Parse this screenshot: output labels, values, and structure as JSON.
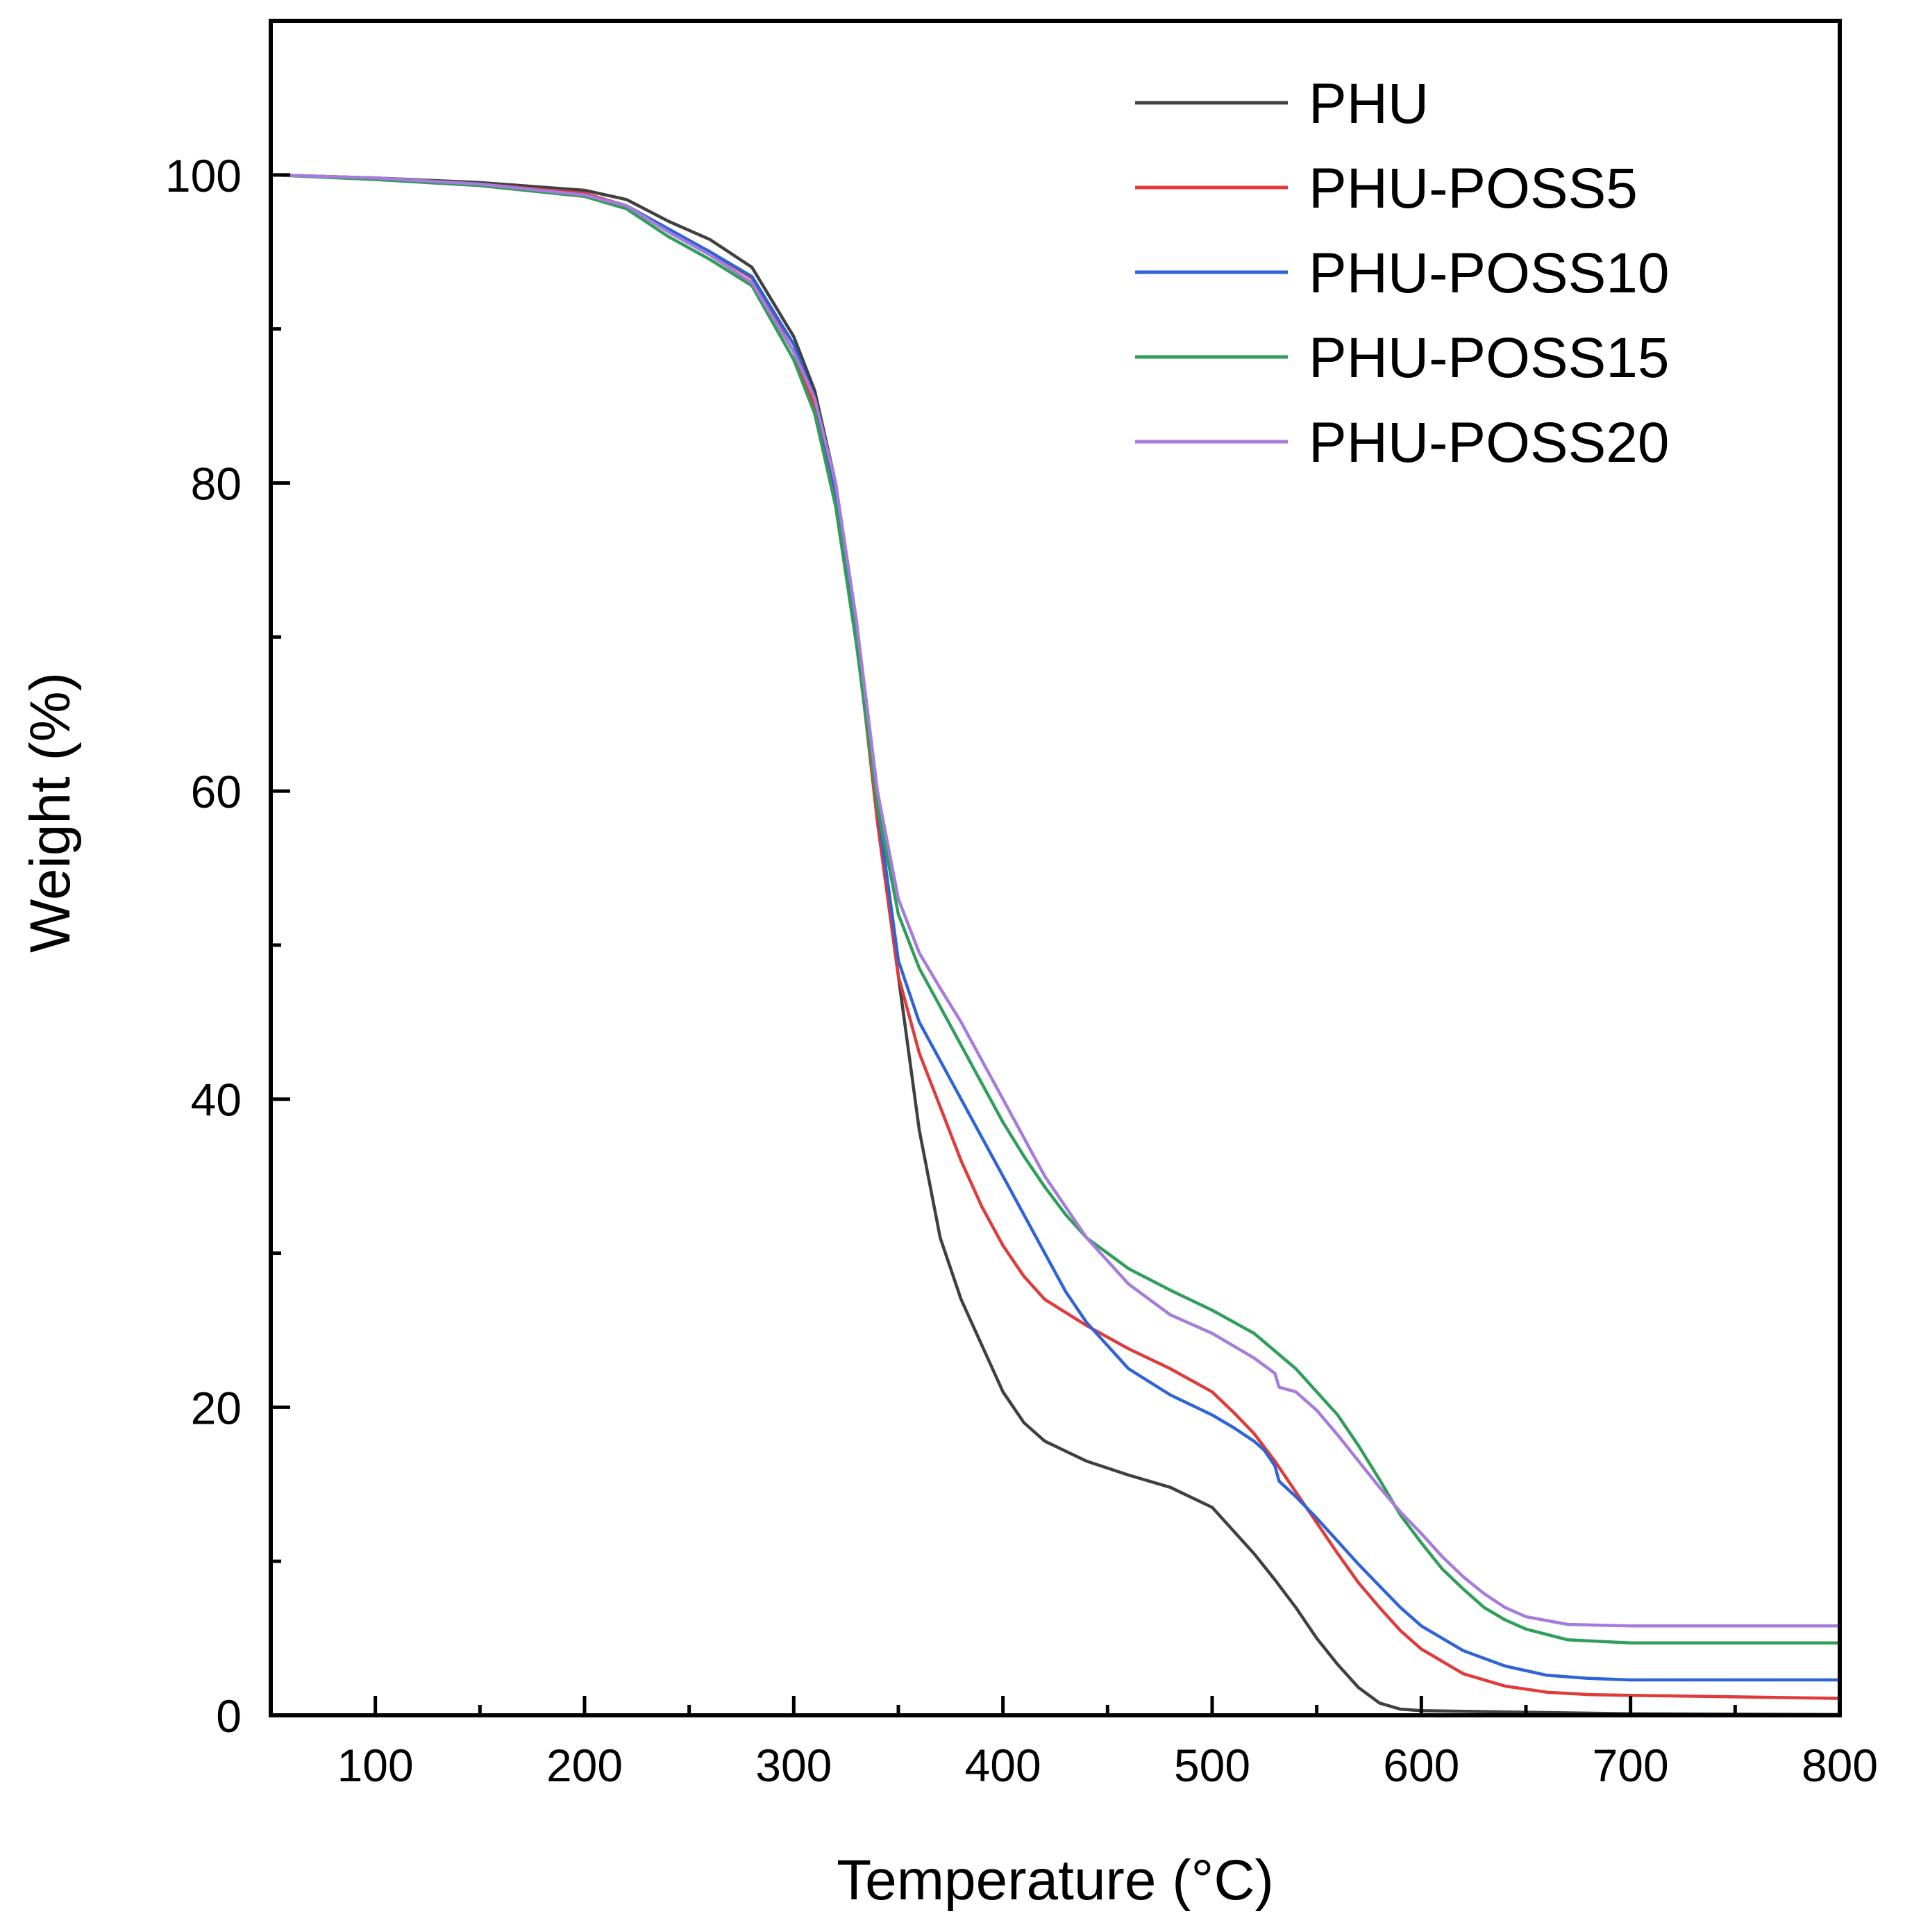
{
  "chart_data": {
    "type": "line",
    "title": "",
    "xlabel": "Temperature (°C)",
    "ylabel": "Weight (%)",
    "xlim": [
      50,
      800
    ],
    "ylim": [
      0,
      110
    ],
    "xticks": [
      "100",
      "200",
      "300",
      "400",
      "500",
      "600",
      "700",
      "800"
    ],
    "yticks": [
      "0",
      "20",
      "40",
      "60",
      "80",
      "100"
    ],
    "legend_position": "top-right",
    "grid": false,
    "series": [
      {
        "name": "PHU",
        "color": "#404040",
        "points": [
          [
            50,
            100
          ],
          [
            100,
            99.8
          ],
          [
            150,
            99.5
          ],
          [
            200,
            99
          ],
          [
            220,
            98.4
          ],
          [
            240,
            97
          ],
          [
            260,
            95.8
          ],
          [
            280,
            94
          ],
          [
            300,
            89.5
          ],
          [
            310,
            86
          ],
          [
            320,
            80
          ],
          [
            330,
            71
          ],
          [
            340,
            58
          ],
          [
            350,
            48
          ],
          [
            360,
            38
          ],
          [
            370,
            31
          ],
          [
            380,
            27
          ],
          [
            390,
            24
          ],
          [
            400,
            21
          ],
          [
            410,
            19
          ],
          [
            420,
            17.8
          ],
          [
            440,
            16.5
          ],
          [
            460,
            15.6
          ],
          [
            480,
            14.8
          ],
          [
            500,
            13.5
          ],
          [
            510,
            12
          ],
          [
            520,
            10.5
          ],
          [
            530,
            8.8
          ],
          [
            540,
            7
          ],
          [
            550,
            5
          ],
          [
            560,
            3.3
          ],
          [
            570,
            1.8
          ],
          [
            580,
            0.8
          ],
          [
            590,
            0.4
          ],
          [
            600,
            0.3
          ],
          [
            650,
            0.2
          ],
          [
            700,
            0.1
          ],
          [
            800,
            0.05
          ]
        ]
      },
      {
        "name": "PHU-POSS5",
        "color": "#e03a3a",
        "points": [
          [
            50,
            100
          ],
          [
            100,
            99.8
          ],
          [
            150,
            99.4
          ],
          [
            200,
            98.8
          ],
          [
            220,
            98
          ],
          [
            240,
            96.5
          ],
          [
            260,
            95
          ],
          [
            280,
            93.3
          ],
          [
            300,
            88.5
          ],
          [
            310,
            85
          ],
          [
            320,
            79
          ],
          [
            330,
            70
          ],
          [
            340,
            58
          ],
          [
            350,
            48
          ],
          [
            360,
            43
          ],
          [
            370,
            39.5
          ],
          [
            380,
            36
          ],
          [
            390,
            33
          ],
          [
            400,
            30.5
          ],
          [
            410,
            28.5
          ],
          [
            420,
            27
          ],
          [
            440,
            25.3
          ],
          [
            460,
            23.8
          ],
          [
            480,
            22.5
          ],
          [
            500,
            21
          ],
          [
            510,
            19.7
          ],
          [
            520,
            18.3
          ],
          [
            530,
            16.5
          ],
          [
            540,
            14.5
          ],
          [
            550,
            12.5
          ],
          [
            560,
            10.5
          ],
          [
            570,
            8.6
          ],
          [
            580,
            7
          ],
          [
            590,
            5.5
          ],
          [
            600,
            4.3
          ],
          [
            620,
            2.7
          ],
          [
            640,
            1.9
          ],
          [
            660,
            1.5
          ],
          [
            680,
            1.35
          ],
          [
            700,
            1.3
          ],
          [
            750,
            1.2
          ],
          [
            800,
            1.1
          ]
        ]
      },
      {
        "name": "PHU-POSS10",
        "color": "#2f63d8",
        "points": [
          [
            50,
            100
          ],
          [
            100,
            99.8
          ],
          [
            150,
            99.4
          ],
          [
            200,
            98.7
          ],
          [
            220,
            98
          ],
          [
            240,
            96.5
          ],
          [
            260,
            95
          ],
          [
            280,
            93.4
          ],
          [
            300,
            89
          ],
          [
            310,
            85.5
          ],
          [
            320,
            79.5
          ],
          [
            330,
            70.5
          ],
          [
            340,
            59
          ],
          [
            350,
            49
          ],
          [
            360,
            45
          ],
          [
            370,
            42.5
          ],
          [
            380,
            40
          ],
          [
            390,
            37.5
          ],
          [
            400,
            35
          ],
          [
            410,
            32.5
          ],
          [
            420,
            30
          ],
          [
            430,
            27.5
          ],
          [
            440,
            25.5
          ],
          [
            460,
            22.5
          ],
          [
            480,
            20.8
          ],
          [
            500,
            19.5
          ],
          [
            510,
            18.7
          ],
          [
            520,
            17.8
          ],
          [
            525,
            17.2
          ],
          [
            530,
            16.2
          ],
          [
            532,
            15.2
          ],
          [
            540,
            14.2
          ],
          [
            550,
            12.8
          ],
          [
            560,
            11.3
          ],
          [
            570,
            9.8
          ],
          [
            580,
            8.4
          ],
          [
            590,
            7
          ],
          [
            600,
            5.8
          ],
          [
            620,
            4.2
          ],
          [
            640,
            3.2
          ],
          [
            660,
            2.6
          ],
          [
            680,
            2.4
          ],
          [
            700,
            2.3
          ],
          [
            750,
            2.3
          ],
          [
            800,
            2.3
          ]
        ]
      },
      {
        "name": "PHU-POSS15",
        "color": "#2f9e5a",
        "points": [
          [
            50,
            100
          ],
          [
            100,
            99.7
          ],
          [
            150,
            99.3
          ],
          [
            200,
            98.6
          ],
          [
            220,
            97.8
          ],
          [
            240,
            96
          ],
          [
            260,
            94.5
          ],
          [
            280,
            92.8
          ],
          [
            300,
            88
          ],
          [
            310,
            84.5
          ],
          [
            320,
            78.5
          ],
          [
            330,
            69.5
          ],
          [
            340,
            59
          ],
          [
            350,
            52
          ],
          [
            360,
            48.5
          ],
          [
            370,
            46
          ],
          [
            380,
            43.5
          ],
          [
            390,
            41
          ],
          [
            400,
            38.5
          ],
          [
            410,
            36.3
          ],
          [
            420,
            34.3
          ],
          [
            430,
            32.5
          ],
          [
            440,
            31
          ],
          [
            450,
            30
          ],
          [
            460,
            29
          ],
          [
            480,
            27.6
          ],
          [
            500,
            26.3
          ],
          [
            520,
            24.8
          ],
          [
            540,
            22.5
          ],
          [
            560,
            19.5
          ],
          [
            570,
            17.5
          ],
          [
            580,
            15.3
          ],
          [
            590,
            13
          ],
          [
            600,
            11.2
          ],
          [
            610,
            9.5
          ],
          [
            620,
            8.2
          ],
          [
            630,
            7
          ],
          [
            640,
            6.2
          ],
          [
            650,
            5.6
          ],
          [
            670,
            4.9
          ],
          [
            700,
            4.7
          ],
          [
            750,
            4.7
          ],
          [
            800,
            4.7
          ]
        ]
      },
      {
        "name": "PHU-POSS20",
        "color": "#a77bdb",
        "points": [
          [
            50,
            100
          ],
          [
            100,
            99.8
          ],
          [
            150,
            99.4
          ],
          [
            200,
            98.7
          ],
          [
            220,
            98
          ],
          [
            240,
            96.3
          ],
          [
            260,
            94.8
          ],
          [
            280,
            93
          ],
          [
            300,
            88.5
          ],
          [
            310,
            85.5
          ],
          [
            320,
            80
          ],
          [
            330,
            71
          ],
          [
            340,
            60
          ],
          [
            350,
            53
          ],
          [
            360,
            49.5
          ],
          [
            370,
            47.2
          ],
          [
            380,
            45
          ],
          [
            390,
            42.5
          ],
          [
            400,
            40
          ],
          [
            410,
            37.5
          ],
          [
            420,
            35
          ],
          [
            430,
            33
          ],
          [
            440,
            31
          ],
          [
            450,
            29.5
          ],
          [
            460,
            28
          ],
          [
            480,
            26
          ],
          [
            500,
            24.8
          ],
          [
            520,
            23.2
          ],
          [
            530,
            22.2
          ],
          [
            532,
            21.3
          ],
          [
            540,
            21
          ],
          [
            550,
            19.8
          ],
          [
            560,
            18.2
          ],
          [
            570,
            16.5
          ],
          [
            580,
            14.8
          ],
          [
            590,
            13.2
          ],
          [
            600,
            11.8
          ],
          [
            610,
            10.3
          ],
          [
            620,
            9
          ],
          [
            630,
            7.9
          ],
          [
            640,
            7
          ],
          [
            650,
            6.4
          ],
          [
            670,
            5.9
          ],
          [
            700,
            5.8
          ],
          [
            750,
            5.8
          ],
          [
            800,
            5.8
          ]
        ]
      }
    ]
  }
}
